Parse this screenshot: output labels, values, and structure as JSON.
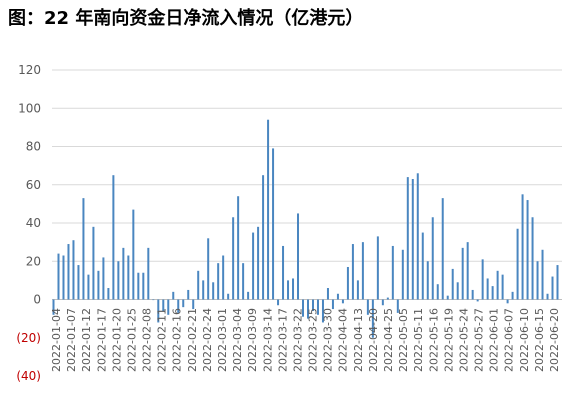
{
  "title": "图：22 年南向资金日净流入情况（亿港元）",
  "chart_data": {
    "type": "bar",
    "series_color": "#4a86c0",
    "negative_tick_color": "#c00000",
    "ylim": [
      -40,
      120
    ],
    "y_ticks": [
      120,
      100,
      80,
      60,
      40,
      20,
      0,
      -20,
      -40
    ],
    "y_tick_labels": [
      "120",
      "100",
      "80",
      "60",
      "40",
      "20",
      "0",
      "(20)",
      "(40)"
    ],
    "grid": true,
    "x_tick_labels": [
      "2022-01-04",
      "2022-01-07",
      "2022-01-12",
      "2022-01-17",
      "2022-01-20",
      "2022-01-25",
      "2022-02-08",
      "2022-02-11",
      "2022-02-16",
      "2022-02-21",
      "2022-02-24",
      "2022-03-01",
      "2022-03-04",
      "2022-03-09",
      "2022-03-14",
      "2022-03-17",
      "2022-03-22",
      "2022-03-25",
      "2022-03-30",
      "2022-04-04",
      "2022-04-13",
      "2022-04-20",
      "2022-04-25",
      "2022-05-05",
      "2022-05-11",
      "2022-05-16",
      "2022-05-19",
      "2022-05-24",
      "2022-05-27",
      "2022-06-01",
      "2022-06-07",
      "2022-06-10",
      "2022-06-15",
      "2022-06-20"
    ],
    "values": [
      -8,
      24,
      23,
      29,
      31,
      18,
      53,
      13,
      38,
      15,
      22,
      6,
      65,
      20,
      27,
      23,
      47,
      14,
      14,
      27,
      0,
      -12,
      -6,
      -8,
      4,
      -7,
      -4,
      5,
      -5,
      15,
      10,
      32,
      9,
      19,
      23,
      3,
      43,
      54,
      19,
      4,
      35,
      38,
      65,
      94,
      79,
      -3,
      28,
      10,
      11,
      45,
      -9,
      -10,
      -6,
      -8,
      -12,
      6,
      -5,
      3,
      -2,
      17,
      29,
      10,
      30,
      -8,
      -20,
      33,
      -3,
      1,
      28,
      -7,
      26,
      64,
      63,
      66,
      35,
      20,
      43,
      8,
      53,
      2,
      16,
      9,
      27,
      30,
      5,
      -1,
      21,
      11,
      7,
      15,
      13,
      -2,
      4,
      37,
      55,
      52,
      43,
      20,
      26,
      3,
      12,
      18
    ]
  }
}
